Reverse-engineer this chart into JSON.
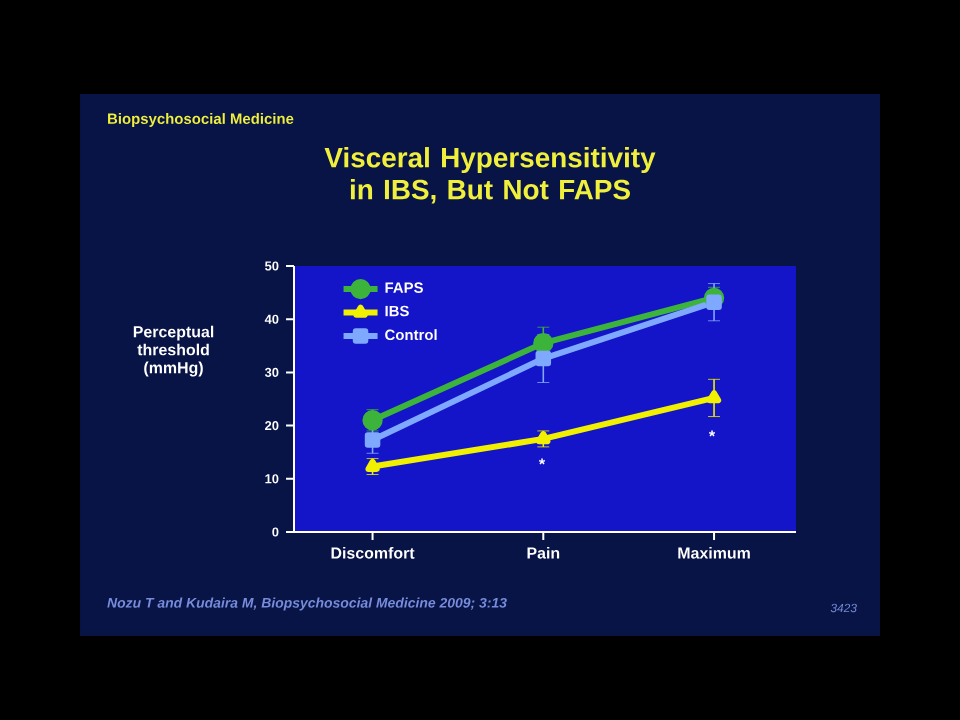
{
  "chart_data": {
    "type": "line",
    "title": "Visceral Hypersensitivity in IBS, But Not FAPS",
    "subtitle": "Biopsychosocial Medicine",
    "ylabel": "Perceptual threshold (mmHg)",
    "categories": [
      "Discomfort",
      "Pain",
      "Maximum"
    ],
    "series": [
      {
        "name": "FAPS",
        "color": "#3cb43c",
        "marker": "circle",
        "values": [
          21,
          35.5,
          44
        ],
        "errors": [
          2,
          3,
          2
        ]
      },
      {
        "name": "IBS",
        "color": "#f0f000",
        "marker": "triangle",
        "values": [
          12.3,
          17.5,
          25.2
        ],
        "errors": [
          1.5,
          1.5,
          3.5
        ]
      },
      {
        "name": "Control",
        "color": "#7fa8ff",
        "marker": "square",
        "values": [
          17.3,
          32.6,
          43.2
        ],
        "errors": [
          2.5,
          4.5,
          3.5
        ]
      }
    ],
    "ylim": [
      0,
      50
    ],
    "yticks": [
      0,
      10,
      20,
      30,
      40,
      50
    ],
    "legend": "top left",
    "annotations": [
      "*",
      "*",
      "Nozu T and Kudaira M, Biopsychosocial Medicine 2009; 3:13",
      "3423"
    ]
  }
}
